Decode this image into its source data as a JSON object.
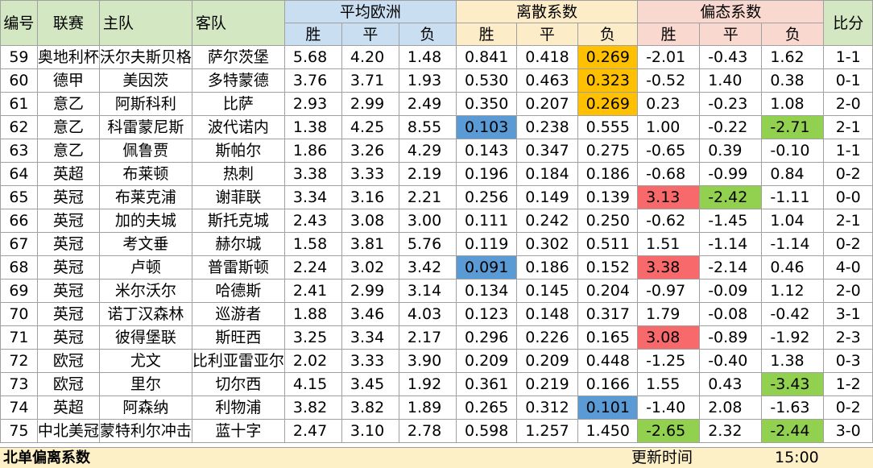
{
  "headers": {
    "id": "编号",
    "league": "联赛",
    "home": "主队",
    "away": "客队",
    "group_avg": "平均欧洲",
    "group_disp": "离散系数",
    "group_skew": "偏态系数",
    "score": "比分",
    "win": "胜",
    "draw": "平",
    "loss": "负"
  },
  "rows": [
    {
      "id": "59",
      "league": "奥地利杯",
      "home": "沃尔夫斯贝格",
      "away": "萨尔茨堡",
      "avg": [
        "5.68",
        "4.20",
        "1.48"
      ],
      "disp": [
        "0.841",
        "0.418",
        "0.269"
      ],
      "skew": [
        "-2.01",
        "-0.43",
        "1.62"
      ],
      "score": "1-1"
    },
    {
      "id": "60",
      "league": "德甲",
      "home": "美因茨",
      "away": "多特蒙德",
      "avg": [
        "3.76",
        "3.71",
        "1.93"
      ],
      "disp": [
        "0.530",
        "0.463",
        "0.323"
      ],
      "skew": [
        "-0.52",
        "1.40",
        "0.38"
      ],
      "score": "0-1"
    },
    {
      "id": "61",
      "league": "意乙",
      "home": "阿斯科利",
      "away": "比萨",
      "avg": [
        "2.93",
        "2.99",
        "2.49"
      ],
      "disp": [
        "0.350",
        "0.207",
        "0.269"
      ],
      "skew": [
        "0.23",
        "-0.23",
        "1.08"
      ],
      "score": "2-0"
    },
    {
      "id": "62",
      "league": "意乙",
      "home": "科雷蒙尼斯",
      "away": "波代诺内",
      "avg": [
        "1.38",
        "4.25",
        "8.55"
      ],
      "disp": [
        "0.103",
        "0.238",
        "0.555"
      ],
      "skew": [
        "1.00",
        "-0.22",
        "-2.71"
      ],
      "score": "2-1"
    },
    {
      "id": "63",
      "league": "意乙",
      "home": "佩鲁贾",
      "away": "斯帕尔",
      "avg": [
        "1.86",
        "3.26",
        "4.29"
      ],
      "disp": [
        "0.143",
        "0.347",
        "0.275"
      ],
      "skew": [
        "-0.65",
        "0.39",
        "-0.10"
      ],
      "score": "1-1"
    },
    {
      "id": "64",
      "league": "英超",
      "home": "布莱顿",
      "away": "热刺",
      "avg": [
        "3.38",
        "3.33",
        "2.19"
      ],
      "disp": [
        "0.196",
        "0.184",
        "0.186"
      ],
      "skew": [
        "-0.68",
        "-0.99",
        "0.84"
      ],
      "score": "0-2"
    },
    {
      "id": "65",
      "league": "英冠",
      "home": "布莱克浦",
      "away": "谢菲联",
      "avg": [
        "3.34",
        "3.16",
        "2.21"
      ],
      "disp": [
        "0.256",
        "0.149",
        "0.139"
      ],
      "skew": [
        "3.13",
        "-2.42",
        "-1.11"
      ],
      "score": "0-0"
    },
    {
      "id": "66",
      "league": "英冠",
      "home": "加的夫城",
      "away": "斯托克城",
      "avg": [
        "2.43",
        "3.08",
        "3.00"
      ],
      "disp": [
        "0.111",
        "0.242",
        "0.250"
      ],
      "skew": [
        "-0.62",
        "-1.45",
        "1.04"
      ],
      "score": "2-1"
    },
    {
      "id": "67",
      "league": "英冠",
      "home": "考文垂",
      "away": "赫尔城",
      "avg": [
        "1.58",
        "3.81",
        "5.76"
      ],
      "disp": [
        "0.119",
        "0.302",
        "0.511"
      ],
      "skew": [
        "1.51",
        "-1.14",
        "-1.14"
      ],
      "score": "0-2"
    },
    {
      "id": "68",
      "league": "英冠",
      "home": "卢顿",
      "away": "普雷斯顿",
      "avg": [
        "2.24",
        "3.02",
        "3.42"
      ],
      "disp": [
        "0.091",
        "0.186",
        "0.152"
      ],
      "skew": [
        "3.38",
        "-2.14",
        "0.46"
      ],
      "score": "4-0"
    },
    {
      "id": "69",
      "league": "英冠",
      "home": "米尔沃尔",
      "away": "哈德斯",
      "avg": [
        "2.41",
        "2.99",
        "3.14"
      ],
      "disp": [
        "0.134",
        "0.145",
        "0.204"
      ],
      "skew": [
        "-0.97",
        "-0.09",
        "1.12"
      ],
      "score": "2-0"
    },
    {
      "id": "70",
      "league": "英冠",
      "home": "诺丁汉森林",
      "away": "巡游者",
      "avg": [
        "1.88",
        "3.46",
        "4.03"
      ],
      "disp": [
        "0.123",
        "0.148",
        "0.317"
      ],
      "skew": [
        "1.79",
        "-0.08",
        "-0.42"
      ],
      "score": "3-1"
    },
    {
      "id": "71",
      "league": "英冠",
      "home": "彼得堡联",
      "away": "斯旺西",
      "avg": [
        "3.25",
        "3.34",
        "2.17"
      ],
      "disp": [
        "0.296",
        "0.226",
        "0.165"
      ],
      "skew": [
        "3.08",
        "-0.89",
        "-1.92"
      ],
      "score": "2-3"
    },
    {
      "id": "72",
      "league": "欧冠",
      "home": "尤文",
      "away": "比利亚雷亚尔",
      "avg": [
        "2.02",
        "3.33",
        "3.90"
      ],
      "disp": [
        "0.209",
        "0.209",
        "0.448"
      ],
      "skew": [
        "-1.25",
        "-0.40",
        "1.38"
      ],
      "score": "0-3"
    },
    {
      "id": "73",
      "league": "欧冠",
      "home": "里尔",
      "away": "切尔西",
      "avg": [
        "4.15",
        "3.45",
        "1.92"
      ],
      "disp": [
        "0.361",
        "0.219",
        "0.166"
      ],
      "skew": [
        "1.55",
        "0.43",
        "-3.43"
      ],
      "score": "1-2"
    },
    {
      "id": "74",
      "league": "英超",
      "home": "阿森纳",
      "away": "利物浦",
      "avg": [
        "3.82",
        "3.82",
        "1.89"
      ],
      "disp": [
        "0.265",
        "0.312",
        "0.101"
      ],
      "skew": [
        "-1.40",
        "2.08",
        "-1.63"
      ],
      "score": "0-2"
    },
    {
      "id": "75",
      "league": "中北美冠",
      "home": "蒙特利尔冲击",
      "away": "蓝十字",
      "avg": [
        "2.47",
        "3.10",
        "2.78"
      ],
      "disp": [
        "0.598",
        "1.257",
        "1.450"
      ],
      "skew": [
        "-2.65",
        "2.32",
        "-2.44"
      ],
      "score": "3-0"
    }
  ],
  "highlights": [
    {
      "row": 0,
      "col": "disp",
      "idx": 2,
      "color": "orange"
    },
    {
      "row": 1,
      "col": "disp",
      "idx": 2,
      "color": "orange"
    },
    {
      "row": 2,
      "col": "disp",
      "idx": 2,
      "color": "orange"
    },
    {
      "row": 3,
      "col": "disp",
      "idx": 0,
      "color": "blue"
    },
    {
      "row": 3,
      "col": "skew",
      "idx": 2,
      "color": "green"
    },
    {
      "row": 6,
      "col": "skew",
      "idx": 0,
      "color": "red"
    },
    {
      "row": 6,
      "col": "skew",
      "idx": 1,
      "color": "green"
    },
    {
      "row": 9,
      "col": "disp",
      "idx": 0,
      "color": "blue"
    },
    {
      "row": 9,
      "col": "skew",
      "idx": 0,
      "color": "red"
    },
    {
      "row": 12,
      "col": "skew",
      "idx": 0,
      "color": "red"
    },
    {
      "row": 14,
      "col": "skew",
      "idx": 2,
      "color": "green"
    },
    {
      "row": 15,
      "col": "disp",
      "idx": 2,
      "color": "blue"
    },
    {
      "row": 16,
      "col": "skew",
      "idx": 0,
      "color": "green"
    },
    {
      "row": 16,
      "col": "skew",
      "idx": 2,
      "color": "green"
    }
  ],
  "footer": {
    "title": "北单偏离系数",
    "update_label": "更新时间",
    "update_time": "15:00"
  },
  "colors": {
    "header_green": "#d3e8c2",
    "header_blue": "#c9dff1",
    "header_peach": "#fdecc8",
    "header_pink": "#f8d8cf",
    "highlight_orange": "#ffc000",
    "highlight_blue": "#5b9bd5",
    "highlight_red": "#f8696b",
    "highlight_green": "#92d050",
    "footer_bg": "#fdefc6"
  }
}
